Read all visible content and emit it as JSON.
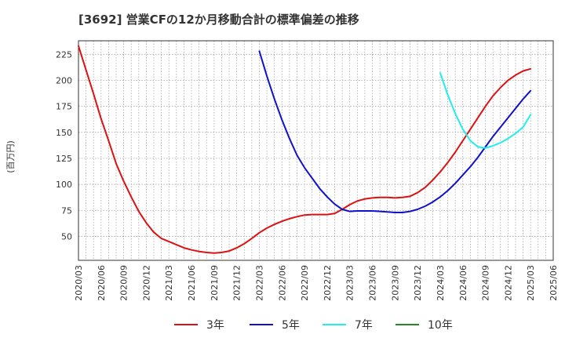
{
  "chart_data": {
    "type": "line",
    "title": "[3692]  営業CFの12か月移動合計の標準偏差の推移",
    "ylabel": "(百万円)",
    "xlabel": "",
    "ylim": [
      27,
      238
    ],
    "yticks": [
      50,
      75,
      100,
      125,
      150,
      175,
      200,
      225
    ],
    "xticks": [
      "2020/03",
      "2020/06",
      "2020/09",
      "2020/12",
      "2021/03",
      "2021/06",
      "2021/09",
      "2021/12",
      "2022/03",
      "2022/06",
      "2022/09",
      "2022/12",
      "2023/03",
      "2023/06",
      "2023/09",
      "2023/12",
      "2024/03",
      "2024/06",
      "2024/09",
      "2024/12",
      "2025/03",
      "2025/06"
    ],
    "grid": true,
    "legend_position": "bottom",
    "series": [
      {
        "name": "3年",
        "color": "#dd1111",
        "x": [
          "2020/03",
          "2020/04",
          "2020/05",
          "2020/06",
          "2020/07",
          "2020/08",
          "2020/09",
          "2020/10",
          "2020/11",
          "2020/12",
          "2021/01",
          "2021/02",
          "2021/03",
          "2021/04",
          "2021/05",
          "2021/06",
          "2021/07",
          "2021/08",
          "2021/09",
          "2021/10",
          "2021/11",
          "2021/12",
          "2022/01",
          "2022/02",
          "2022/03",
          "2022/04",
          "2022/05",
          "2022/06",
          "2022/07",
          "2022/08",
          "2022/09",
          "2022/10",
          "2022/11",
          "2022/12",
          "2023/01",
          "2023/02",
          "2023/03",
          "2023/04",
          "2023/05",
          "2023/06",
          "2023/07",
          "2023/08",
          "2023/09",
          "2023/10",
          "2023/11",
          "2023/12",
          "2024/01",
          "2024/02",
          "2024/03",
          "2024/04",
          "2024/05",
          "2024/06",
          "2024/07",
          "2024/08",
          "2024/09",
          "2024/10",
          "2024/11",
          "2024/12",
          "2025/01",
          "2025/02",
          "2025/03"
        ],
        "values": [
          233,
          210,
          187,
          163,
          142,
          120,
          103,
          88,
          74,
          63,
          54,
          48,
          45,
          42,
          39,
          37,
          35.5,
          34.5,
          34,
          34.5,
          36,
          39,
          43,
          48,
          53.5,
          58,
          61.5,
          64.5,
          67,
          69,
          70.5,
          71,
          71,
          71,
          72,
          76,
          80.5,
          84,
          86,
          87,
          87.5,
          87.5,
          87,
          87.5,
          88.5,
          92,
          97,
          104,
          112,
          121,
          131,
          142,
          153,
          164,
          175,
          185,
          193,
          200,
          205,
          209,
          211
        ]
      },
      {
        "name": "5年",
        "color": "#1111cc",
        "x": [
          "2022/03",
          "2022/04",
          "2022/05",
          "2022/06",
          "2022/07",
          "2022/08",
          "2022/09",
          "2022/10",
          "2022/11",
          "2022/12",
          "2023/01",
          "2023/02",
          "2023/03",
          "2023/04",
          "2023/05",
          "2023/06",
          "2023/07",
          "2023/08",
          "2023/09",
          "2023/10",
          "2023/11",
          "2023/12",
          "2024/01",
          "2024/02",
          "2024/03",
          "2024/04",
          "2024/05",
          "2024/06",
          "2024/07",
          "2024/08",
          "2024/09",
          "2024/10",
          "2024/11",
          "2024/12",
          "2025/01",
          "2025/02",
          "2025/03"
        ],
        "values": [
          228,
          204,
          182,
          162,
          144,
          128,
          116,
          106,
          96,
          88,
          81,
          76,
          74,
          74.5,
          74.5,
          74.5,
          74,
          73.5,
          73,
          73,
          74,
          76,
          79,
          83,
          88,
          94,
          101,
          109,
          117,
          126,
          136,
          146,
          155,
          164,
          173,
          182,
          190
        ]
      },
      {
        "name": "7年",
        "color": "#22eeee",
        "x": [
          "2024/03",
          "2024/04",
          "2024/05",
          "2024/06",
          "2024/07",
          "2024/08",
          "2024/09",
          "2024/10",
          "2024/11",
          "2024/12",
          "2025/01",
          "2025/02",
          "2025/03"
        ],
        "values": [
          207,
          186,
          168,
          153,
          142,
          136,
          135,
          137,
          140,
          144,
          149,
          155,
          167
        ]
      },
      {
        "name": "10年",
        "color": "#228b22",
        "x": [],
        "values": []
      }
    ]
  }
}
